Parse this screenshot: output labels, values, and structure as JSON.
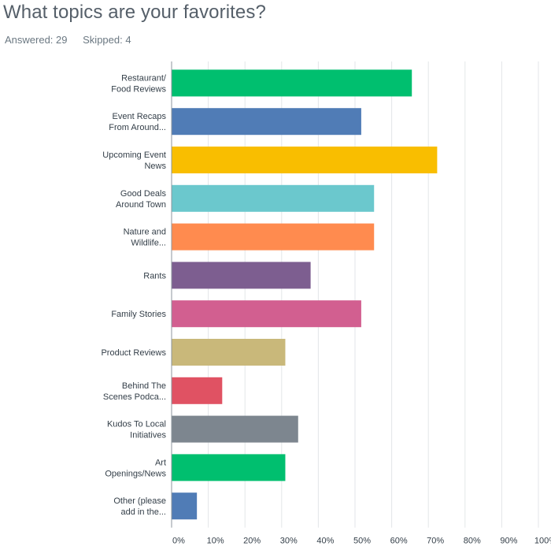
{
  "question": {
    "title": "What topics are your favorites?",
    "answered_label": "Answered:",
    "answered_count": "29",
    "skipped_label": "Skipped:",
    "skipped_count": "4"
  },
  "chart_data": {
    "type": "bar",
    "orientation": "horizontal",
    "categories": [
      [
        "Restaurant/",
        "Food Reviews"
      ],
      [
        "Event Recaps",
        "From Around..."
      ],
      [
        "Upcoming Event",
        "News"
      ],
      [
        "Good Deals",
        "Around Town"
      ],
      [
        "Nature and",
        "Wildlife..."
      ],
      [
        "Rants"
      ],
      [
        "Family Stories"
      ],
      [
        "Product Reviews"
      ],
      [
        "Behind The",
        "Scenes Podca..."
      ],
      [
        "Kudos To Local",
        "Initiatives"
      ],
      [
        "Art",
        "Openings/News"
      ],
      [
        "Other (please",
        "add in the..."
      ]
    ],
    "values": [
      65.5,
      51.7,
      72.4,
      55.2,
      55.2,
      37.9,
      51.7,
      31.0,
      13.8,
      34.5,
      31.0,
      6.9
    ],
    "colors": [
      "#00bf6f",
      "#507cb6",
      "#f9be00",
      "#6bc8cd",
      "#ff8b4f",
      "#7d5e90",
      "#d25f90",
      "#c9b87a",
      "#e05263",
      "#7d868f",
      "#00bf6f",
      "#507cb6"
    ],
    "xticks": [
      "0%",
      "10%",
      "20%",
      "30%",
      "40%",
      "50%",
      "60%",
      "70%",
      "80%",
      "90%",
      "100%"
    ],
    "xlim": [
      0,
      100
    ],
    "grid": true
  }
}
